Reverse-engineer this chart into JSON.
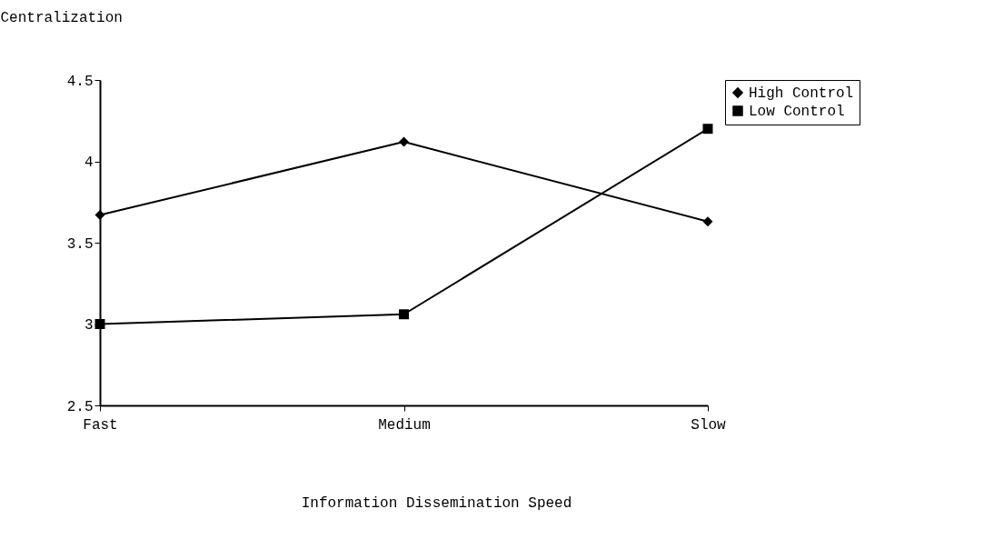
{
  "chart_data": {
    "type": "line",
    "ylabel": "Centralization",
    "xlabel": "Information Dissemination Speed",
    "categories": [
      "Fast",
      "Medium",
      "Slow"
    ],
    "series": [
      {
        "name": "High Control",
        "color": "#000000",
        "marker": "diamond",
        "values": [
          3.67,
          4.12,
          3.63
        ]
      },
      {
        "name": "Low Control",
        "color": "#000000",
        "marker": "square",
        "values": [
          3.0,
          3.06,
          4.2
        ]
      }
    ],
    "ylim": [
      2.5,
      4.5
    ],
    "yticks": [
      2.5,
      3,
      3.5,
      4,
      4.5
    ],
    "grid": false,
    "legend": "right",
    "line_style": "solid"
  }
}
